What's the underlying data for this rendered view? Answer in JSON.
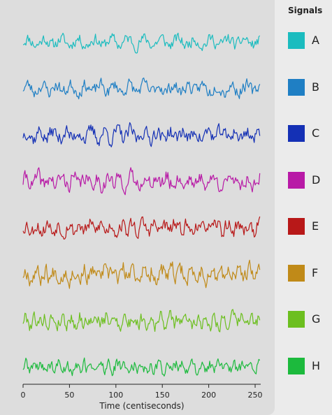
{
  "chart_data": {
    "type": "line",
    "title": "",
    "xlabel": "Time (centiseconds)",
    "ylabel": "",
    "xlim": [
      0,
      256
    ],
    "x_ticks": [
      0,
      50,
      100,
      150,
      200,
      250
    ],
    "grid": false,
    "legend_title": "Signals",
    "legend_placement": "right",
    "samples_per_series": 256,
    "note_values": "Each series is an unlabeled noisy trace; y axis has no ticks. Values below are approximate amplitude estimates per sample (arbitrary units, -1 to 1).",
    "series": [
      {
        "name": "A",
        "color": "#1bbcbf",
        "seed": 11,
        "amplitude": 0.55
      },
      {
        "name": "B",
        "color": "#1f7fc4",
        "seed": 23,
        "amplitude": 0.6
      },
      {
        "name": "C",
        "color": "#1430b5",
        "seed": 37,
        "amplitude": 0.7
      },
      {
        "name": "D",
        "color": "#b81aa6",
        "seed": 41,
        "amplitude": 0.75
      },
      {
        "name": "E",
        "color": "#b81818",
        "seed": 53,
        "amplitude": 0.7
      },
      {
        "name": "F",
        "color": "#c08a18",
        "seed": 67,
        "amplitude": 0.8
      },
      {
        "name": "G",
        "color": "#6cbf1f",
        "seed": 79,
        "amplitude": 0.7
      },
      {
        "name": "H",
        "color": "#1cba3d",
        "seed": 89,
        "amplitude": 0.6
      }
    ]
  }
}
